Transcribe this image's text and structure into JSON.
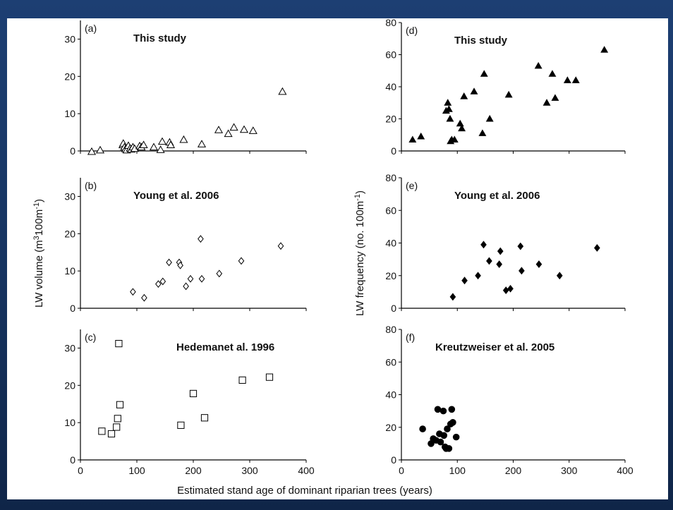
{
  "xlabel": "Estimated stand age of dominant riparian trees (years)",
  "ylabel_left": {
    "pre": "LW volume (m",
    "sup1": "3",
    "mid": "100m",
    "sup2": "-1",
    "post": ")"
  },
  "ylabel_right": {
    "pre": "LW frequency (no. 100m",
    "sup": "-1",
    "post": ")"
  },
  "chart_data": [
    {
      "id": "a",
      "label": "(a)",
      "title": "This study",
      "type": "scatter",
      "marker": "triangle-open",
      "xlim": [
        0,
        400
      ],
      "ylim": [
        0,
        35
      ],
      "xticks": [],
      "yticks": [
        0,
        10,
        20,
        30
      ],
      "x": [
        20,
        35,
        75,
        76,
        78,
        80,
        82,
        85,
        88,
        90,
        93,
        96,
        105,
        108,
        112,
        130,
        142,
        145,
        158,
        160,
        183,
        215,
        245,
        262,
        272,
        290,
        306,
        358
      ],
      "y": [
        -0.2,
        0.2,
        1.6,
        2.0,
        1.0,
        0.5,
        0.2,
        1.4,
        0.7,
        0.4,
        1.0,
        0.6,
        1.3,
        1.0,
        1.6,
        1.0,
        0.3,
        2.5,
        2.3,
        1.6,
        3.0,
        1.8,
        5.6,
        4.6,
        6.3,
        5.7,
        5.4,
        15.9
      ]
    },
    {
      "id": "b",
      "label": "(b)",
      "title": "Young et al. 2006",
      "type": "scatter",
      "marker": "diamond-open",
      "xlim": [
        0,
        400
      ],
      "ylim": [
        0,
        35
      ],
      "xticks": [],
      "yticks": [
        0,
        10,
        20,
        30
      ],
      "x": [
        93,
        113,
        138,
        146,
        157,
        175,
        177,
        187,
        195,
        213,
        215,
        246,
        285,
        355
      ],
      "y": [
        4.4,
        2.8,
        6.5,
        7.2,
        12.3,
        12.3,
        11.5,
        5.9,
        7.9,
        18.6,
        7.9,
        9.3,
        12.7,
        16.7
      ]
    },
    {
      "id": "c",
      "label": "(c)",
      "title": "Hedemanet al. 1996",
      "type": "scatter",
      "marker": "square-open",
      "xlim": [
        0,
        400
      ],
      "ylim": [
        0,
        35
      ],
      "xticks": [
        0,
        100,
        200,
        300,
        400
      ],
      "yticks": [
        0,
        10,
        20,
        30
      ],
      "x": [
        38,
        55,
        64,
        66,
        68,
        70,
        178,
        200,
        220,
        287,
        335
      ],
      "y": [
        7.7,
        7.0,
        8.8,
        11.1,
        31.2,
        14.8,
        9.3,
        17.8,
        11.3,
        21.4,
        22.2
      ]
    },
    {
      "id": "d",
      "label": "(d)",
      "title": "This study",
      "type": "scatter",
      "marker": "triangle-filled",
      "xlim": [
        0,
        400
      ],
      "ylim": [
        0,
        80
      ],
      "xticks": [],
      "yticks": [
        0,
        20,
        40,
        60,
        80
      ],
      "x": [
        20,
        35,
        80,
        83,
        85,
        87,
        88,
        90,
        95,
        105,
        108,
        112,
        130,
        145,
        148,
        158,
        192,
        245,
        260,
        270,
        275,
        297,
        312,
        363
      ],
      "y": [
        7,
        9,
        25,
        30,
        26,
        20,
        6,
        7,
        7,
        17,
        14,
        34,
        37,
        11,
        48,
        20,
        35,
        53,
        30,
        48,
        33,
        44,
        44,
        63
      ]
    },
    {
      "id": "e",
      "label": "(e)",
      "title": "Young et al. 2006",
      "type": "scatter",
      "marker": "diamond-filled",
      "xlim": [
        0,
        400
      ],
      "ylim": [
        0,
        80
      ],
      "xticks": [],
      "yticks": [
        0,
        20,
        40,
        60,
        80
      ],
      "x": [
        92,
        113,
        137,
        147,
        157,
        175,
        177,
        187,
        195,
        213,
        215,
        246,
        283,
        350
      ],
      "y": [
        7,
        17,
        20,
        39,
        29,
        27,
        35,
        11,
        12,
        38,
        23,
        27,
        20,
        37
      ]
    },
    {
      "id": "f",
      "label": "(f)",
      "title": "Kreutzweiser et al. 2005",
      "type": "scatter",
      "marker": "circle-filled",
      "xlim": [
        0,
        400
      ],
      "ylim": [
        0,
        80
      ],
      "xticks": [
        0,
        100,
        200,
        300,
        400
      ],
      "yticks": [
        0,
        20,
        40,
        60,
        80
      ],
      "x": [
        38,
        53,
        57,
        62,
        65,
        68,
        70,
        75,
        76,
        78,
        80,
        82,
        85,
        88,
        90,
        92,
        98
      ],
      "y": [
        19,
        10,
        13,
        12,
        31,
        16,
        11,
        30,
        15,
        8,
        7,
        19,
        7,
        22,
        31,
        23,
        14
      ]
    }
  ]
}
